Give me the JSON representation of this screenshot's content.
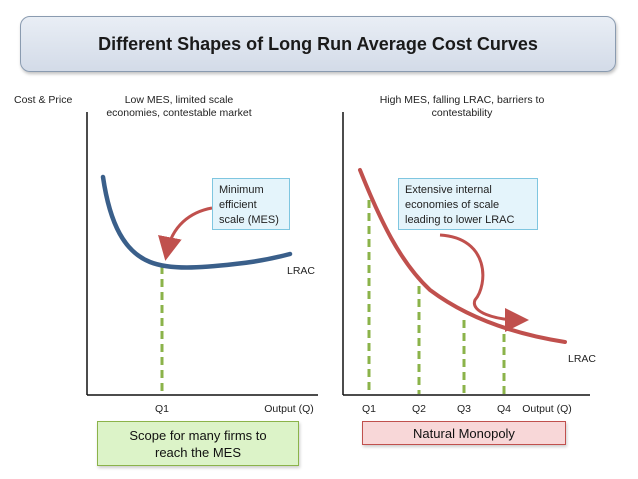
{
  "title": "Different Shapes of Long Run Average Cost Curves",
  "left_chart": {
    "y_axis_label": "Cost & Price",
    "heading": "Low MES, limited scale economies, contestable market",
    "callout": "Minimum efficient scale (MES)",
    "curve_label": "LRAC",
    "x_ticks": [
      "Q1"
    ],
    "x_axis_label": "Output (Q)",
    "note": "Scope for many firms to reach the MES"
  },
  "right_chart": {
    "heading": "High MES, falling LRAC, barriers to contestability",
    "callout": "Extensive internal economies of scale leading to lower LRAC",
    "curve_label": "LRAC",
    "x_ticks": [
      "Q1",
      "Q2",
      "Q3",
      "Q4"
    ],
    "x_axis_label": "Output (Q)",
    "note": "Natural Monopoly"
  },
  "colors": {
    "left_curve": "#3a5f8a",
    "right_curve": "#c0504d",
    "dashed": "#8bb34a",
    "note_left_bg": "#dcf3c8",
    "note_right_bg": "#f8d7d8"
  }
}
